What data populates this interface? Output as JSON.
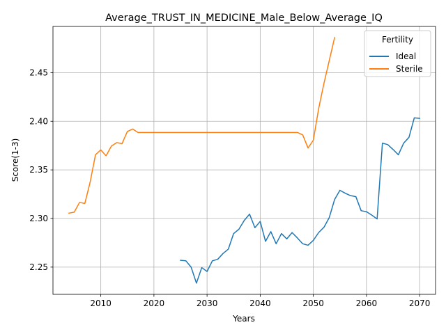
{
  "chart_data": {
    "type": "line",
    "title": "Average_TRUST_IN_MEDICINE_Male_Below_Average_IQ",
    "xlabel": "Years",
    "ylabel": "Score(1-3)",
    "xlim": [
      2001,
      2073
    ],
    "ylim": [
      2.222,
      2.4975
    ],
    "xticks": [
      2010,
      2020,
      2030,
      2040,
      2050,
      2060,
      2070
    ],
    "yticks": [
      2.25,
      2.3,
      2.35,
      2.4,
      2.45
    ],
    "ytick_labels": [
      "2.25",
      "2.30",
      "2.35",
      "2.40",
      "2.45"
    ],
    "grid": true,
    "legend": {
      "title": "Fertility",
      "position": "top-right"
    },
    "series": [
      {
        "name": "Ideal",
        "color": "#1f77b4",
        "x": [
          2025,
          2026,
          2027,
          2028,
          2029,
          2030,
          2031,
          2032,
          2033,
          2034,
          2035,
          2036,
          2037,
          2038,
          2039,
          2040,
          2041,
          2042,
          2043,
          2044,
          2045,
          2046,
          2047,
          2048,
          2049,
          2050,
          2051,
          2052,
          2053,
          2054,
          2055,
          2056,
          2057,
          2058,
          2059,
          2060,
          2061,
          2062,
          2063,
          2064,
          2065,
          2066,
          2067,
          2068,
          2069,
          2070
        ],
        "y": [
          2.257,
          2.2565,
          2.25,
          2.2335,
          2.2495,
          2.2455,
          2.2565,
          2.258,
          2.264,
          2.2685,
          2.2845,
          2.289,
          2.298,
          2.3045,
          2.2905,
          2.297,
          2.2765,
          2.2865,
          2.274,
          2.2845,
          2.279,
          2.2855,
          2.28,
          2.274,
          2.2725,
          2.2775,
          2.2855,
          2.291,
          2.301,
          2.3195,
          2.329,
          2.326,
          2.3235,
          2.3225,
          2.308,
          2.307,
          2.3035,
          2.2995,
          2.3775,
          2.376,
          2.371,
          2.3655,
          2.3775,
          2.3835,
          2.4035,
          2.403
        ]
      },
      {
        "name": "Sterile",
        "color": "#ff7f0e",
        "x": [
          2004,
          2005,
          2006,
          2007,
          2008,
          2009,
          2010,
          2011,
          2012,
          2013,
          2014,
          2015,
          2016,
          2017,
          2018,
          2019,
          2020,
          2021,
          2022,
          2023,
          2024,
          2025,
          2026,
          2027,
          2028,
          2029,
          2030,
          2031,
          2032,
          2033,
          2034,
          2035,
          2036,
          2037,
          2038,
          2039,
          2040,
          2041,
          2042,
          2043,
          2044,
          2045,
          2046,
          2047,
          2048,
          2049,
          2050,
          2051,
          2052,
          2053,
          2054
        ],
        "y": [
          2.3055,
          2.3065,
          2.3165,
          2.3155,
          2.3375,
          2.3655,
          2.3705,
          2.3645,
          2.3745,
          2.378,
          2.377,
          2.3895,
          2.392,
          2.3885,
          2.3885,
          2.3885,
          2.3885,
          2.3885,
          2.3885,
          2.3885,
          2.3885,
          2.3885,
          2.3885,
          2.3885,
          2.3885,
          2.3885,
          2.3885,
          2.3885,
          2.3885,
          2.3885,
          2.3885,
          2.3885,
          2.3885,
          2.3885,
          2.3885,
          2.3885,
          2.3885,
          2.3885,
          2.3885,
          2.3885,
          2.3885,
          2.3885,
          2.3885,
          2.3885,
          2.386,
          2.3725,
          2.3805,
          2.413,
          2.439,
          2.4625,
          2.486
        ]
      }
    ]
  }
}
